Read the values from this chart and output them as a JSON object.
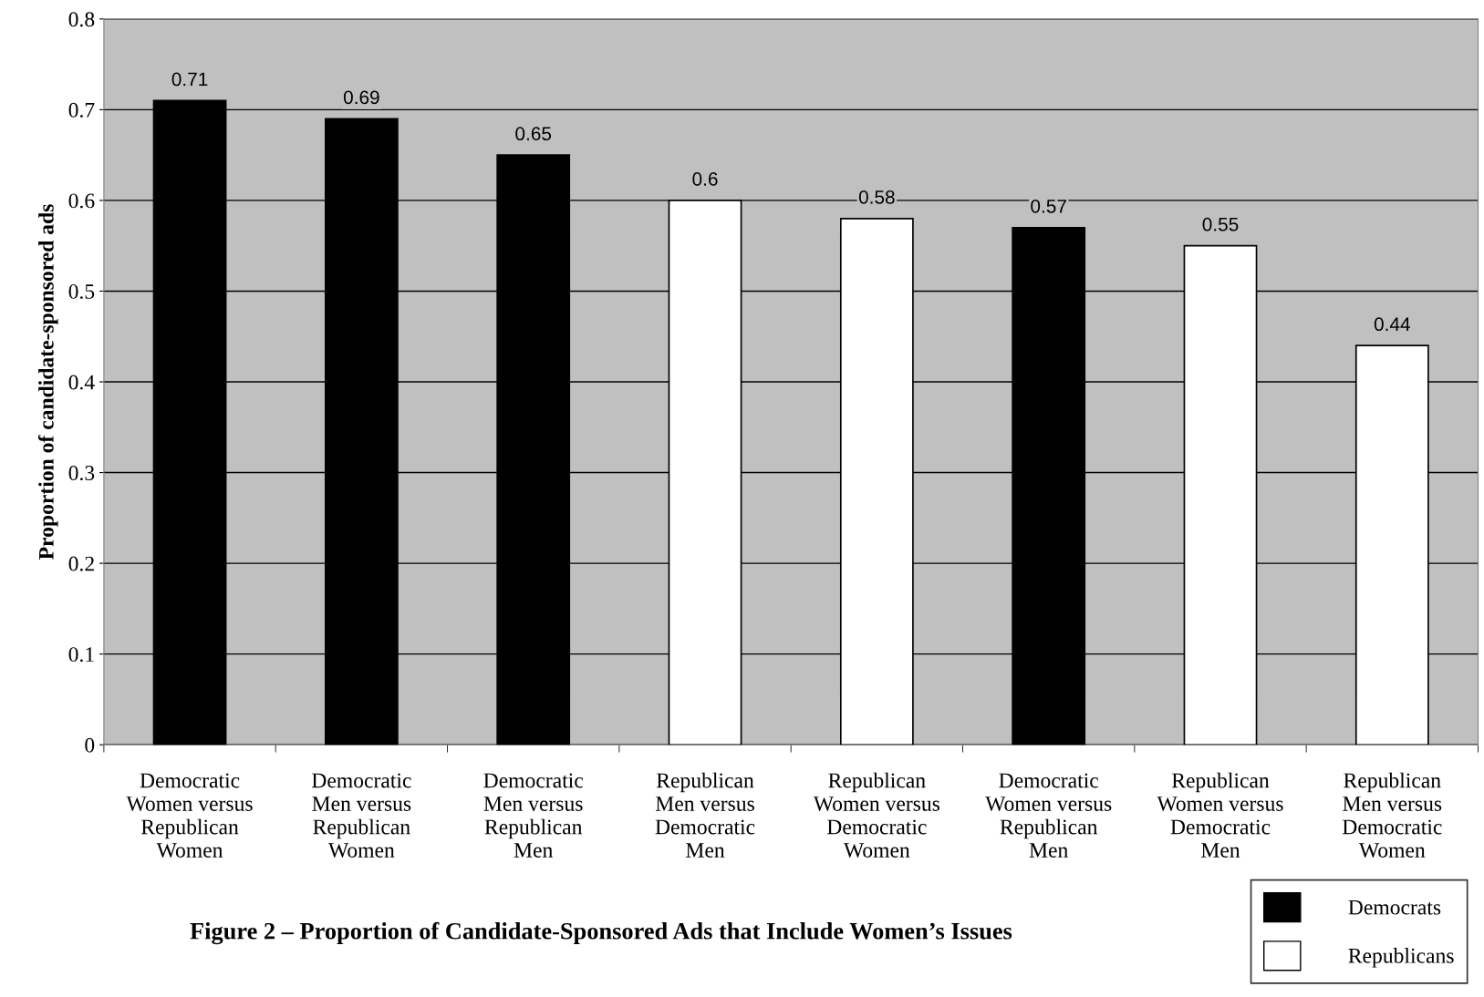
{
  "chart_data": {
    "type": "bar",
    "title": "Figure 2 – Proportion of Candidate-Sponsored Ads that Include Women’s Issues",
    "ylabel": "Proportion of candidate-sponsored ads",
    "categories": [
      "Democratic\nWomen versus\nRepublican\nWomen",
      "Democratic\nMen versus\nRepublican\nWomen",
      "Democratic\nMen versus\nRepublican\nMen",
      "Republican\nMen versus\nDemocratic\nMen",
      "Republican\nWomen versus\nDemocratic\nWomen",
      "Democratic\nWomen versus\nRepublican\nMen",
      "Republican\nWomen versus\nDemocratic\nMen",
      "Republican\nMen versus\nDemocratic\nWomen"
    ],
    "series": [
      {
        "name": "Democrats",
        "color": "#000000",
        "values": [
          0.71,
          0.69,
          0.65,
          null,
          null,
          0.57,
          null,
          null
        ]
      },
      {
        "name": "Republicans",
        "color": "#ffffff",
        "values": [
          null,
          null,
          null,
          0.6,
          0.58,
          null,
          0.55,
          0.44
        ]
      }
    ],
    "ylim": [
      0,
      0.8
    ],
    "yticks": [
      0,
      0.1,
      0.2,
      0.3,
      0.4,
      0.5,
      0.6,
      0.7,
      0.8
    ],
    "grid": "y",
    "legend": "bottom right",
    "data_labels": true
  }
}
